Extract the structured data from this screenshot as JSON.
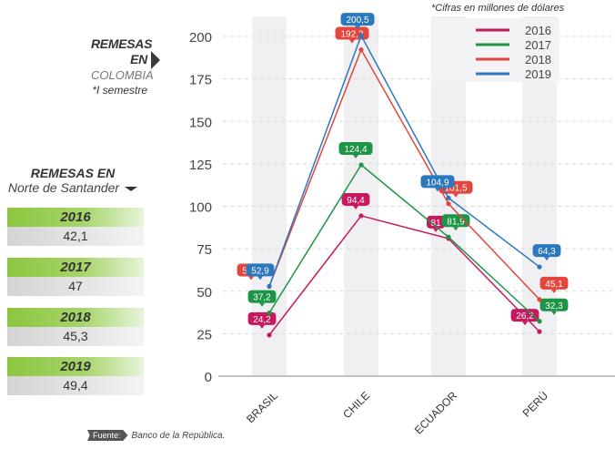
{
  "chart_data": {
    "type": "line",
    "title": "REMESAS EN COLOMBIA",
    "subtitle": "*I semestre",
    "note": "*Cifras en millones de dólares",
    "xlabel": "",
    "ylabel": "",
    "categories": [
      "BRASIL",
      "CHILE",
      "ECUADOR",
      "PERÚ"
    ],
    "ylim": [
      0,
      200
    ],
    "yticks": [
      0,
      25,
      50,
      75,
      100,
      125,
      150,
      175,
      200
    ],
    "grid": true,
    "legend_position": "top-right",
    "series": [
      {
        "name": "2016",
        "color": "#c8195f",
        "values": [
          24.2,
          94.4,
          81,
          26.2
        ],
        "labels": [
          "24,2",
          "94,4",
          "81",
          "26,2"
        ]
      },
      {
        "name": "2017",
        "color": "#1e9447",
        "values": [
          37.2,
          124.4,
          81.9,
          32.3
        ],
        "labels": [
          "37,2",
          "124,4",
          "81,9",
          "32,3"
        ]
      },
      {
        "name": "2018",
        "color": "#e2463c",
        "values": [
          52.8,
          192.2,
          101.5,
          45.1
        ],
        "labels": [
          "52,8",
          "192,2",
          "101,5",
          "45,1"
        ]
      },
      {
        "name": "2019",
        "color": "#2c78bf",
        "values": [
          52.9,
          200.5,
          104.9,
          64.3
        ],
        "labels": [
          "52,9",
          "200,5",
          "104,9",
          "64,3"
        ]
      }
    ]
  },
  "colombia_header": {
    "line1": "REMESAS",
    "line2": "EN",
    "line3": "COLOMBIA",
    "line4": "*I semestre"
  },
  "norte_santander": {
    "title": "REMESAS EN",
    "subtitle": "Norte de Santander",
    "rows": [
      {
        "year": "2016",
        "value": "42,1"
      },
      {
        "year": "2017",
        "value": "47"
      },
      {
        "year": "2018",
        "value": "45,3"
      },
      {
        "year": "2019",
        "value": "49,4"
      }
    ]
  },
  "footer": {
    "label": "Fuente:",
    "source": "Banco de la República."
  }
}
